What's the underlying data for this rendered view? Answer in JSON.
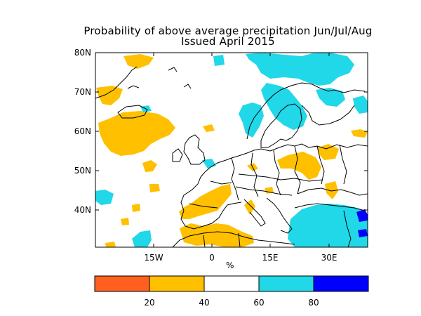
{
  "title": {
    "line1": "Probability of above average precipitation Jun/Jul/Aug",
    "line2": "Issued April 2015"
  },
  "axes": {
    "y_labels": [
      "80N",
      "70N",
      "60N",
      "50N",
      "40N"
    ],
    "x_labels": [
      "15W",
      "0",
      "15E",
      "30E"
    ],
    "unit_label": "%"
  },
  "colorbar": {
    "tick_labels": [
      "20",
      "40",
      "60",
      "80"
    ],
    "classes": [
      {
        "range": "0-20",
        "color": "#ff6020"
      },
      {
        "range": "20-40",
        "color": "#ffc000"
      },
      {
        "range": "40-60",
        "color": "#ffffff"
      },
      {
        "range": "60-80",
        "color": "#20d8e8"
      },
      {
        "range": "80-100",
        "color": "#0000ff"
      }
    ]
  },
  "colors": {
    "below_normal": "#ffc000",
    "above_normal": "#20d8e8",
    "strongly_above": "#0000ff",
    "coastline": "#000000"
  }
}
